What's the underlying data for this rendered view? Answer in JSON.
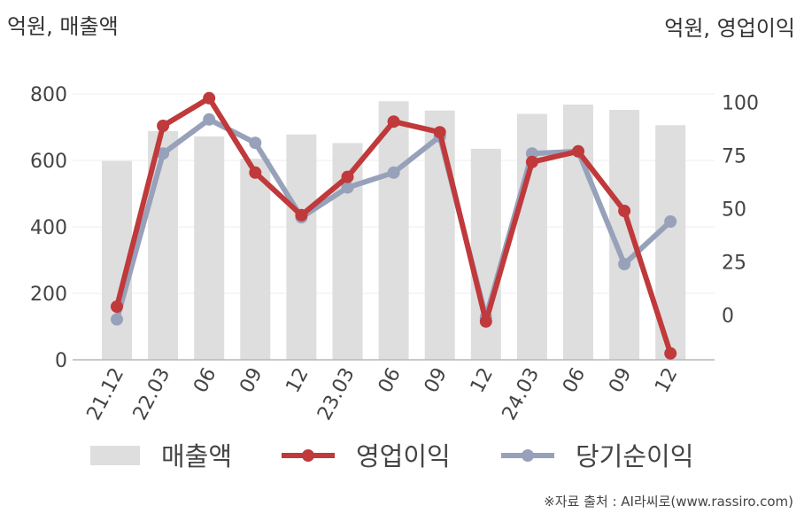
{
  "units": {
    "left": "억원, 매출액",
    "right": "억원, 영업이익"
  },
  "source": "※자료 출처 : AI라씨로(www.rassiro.com)",
  "colors": {
    "revenue": "#dedede",
    "operating": "#c0393b",
    "net": "#97a1ba"
  },
  "chart_data": {
    "type": "bar",
    "categories": [
      "21.12",
      "22.03",
      "06",
      "09",
      "12",
      "23.03",
      "06",
      "09",
      "12",
      "24.03",
      "06",
      "09",
      "12"
    ],
    "y_left": {
      "ticks": [
        0,
        200,
        400,
        600,
        800
      ],
      "lim": [
        0,
        800
      ]
    },
    "y_right": {
      "ticks": [
        0,
        25,
        50,
        75,
        100
      ],
      "lim": [
        -21,
        104
      ]
    },
    "series": [
      {
        "name": "매출액",
        "type": "bar",
        "axis": "left",
        "values": [
          598,
          688,
          672,
          605,
          678,
          652,
          778,
          750,
          635,
          740,
          768,
          752,
          706
        ]
      },
      {
        "name": "영업이익",
        "type": "line",
        "axis": "right",
        "values": [
          4,
          89,
          102,
          67,
          47,
          65,
          91,
          86,
          -3,
          72,
          77,
          49,
          -18
        ]
      },
      {
        "name": "당기순이익",
        "type": "line",
        "axis": "right",
        "values": [
          -2,
          76,
          92,
          81,
          46,
          60,
          67,
          84,
          -1,
          76,
          77,
          24,
          44
        ]
      }
    ],
    "grid": true,
    "legend": "bottom"
  }
}
